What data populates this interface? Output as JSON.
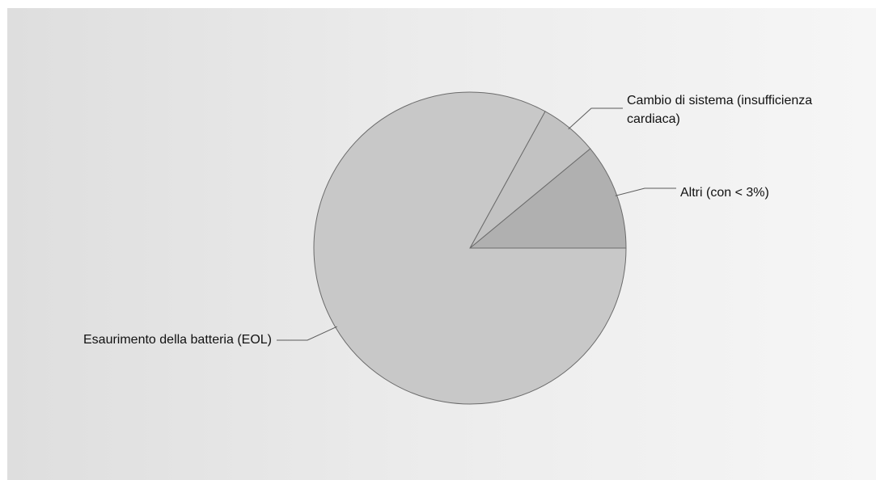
{
  "chart_data": {
    "type": "pie",
    "title": "",
    "slices": [
      {
        "label": "Esaurimento della batteria (EOL)",
        "lines": [
          "Esaurimento della batteria (EOL)"
        ],
        "value": 83,
        "color": "#c8c8c8"
      },
      {
        "label": "Cambio di sistema (insufficienza cardiaca)",
        "lines": [
          "Cambio di sistema (insufficienza",
          "cardiaca)"
        ],
        "value": 6,
        "color": "#c2c2c2"
      },
      {
        "label": "Altri (con < 3%)",
        "lines": [
          "Altri (con < 3%)"
        ],
        "value": 11,
        "color": "#b0b0b0"
      }
    ],
    "legend": "none",
    "label_style": "leader-lines"
  }
}
